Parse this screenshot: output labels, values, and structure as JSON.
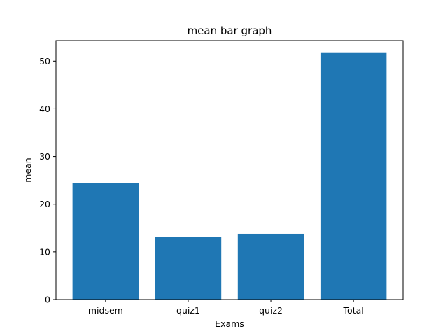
{
  "chart_data": {
    "type": "bar",
    "title": "mean bar graph",
    "xlabel": "Exams",
    "ylabel": "mean",
    "categories": [
      "midsem",
      "quiz1",
      "quiz2",
      "Total"
    ],
    "values": [
      24.4,
      13.1,
      13.8,
      51.7
    ],
    "ylim": [
      0,
      54.3
    ],
    "yticks": [
      0,
      10,
      20,
      30,
      40,
      50
    ],
    "bar_color": "#1f77b4",
    "grid": false,
    "legend": "none"
  }
}
